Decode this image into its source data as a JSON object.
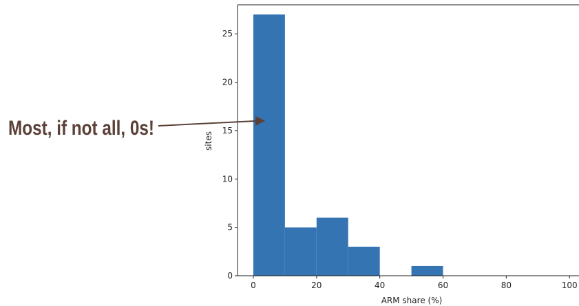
{
  "chart_data": {
    "type": "bar",
    "subtype": "histogram",
    "bins": [
      {
        "from": 0,
        "to": 10,
        "value": 27
      },
      {
        "from": 10,
        "to": 20,
        "value": 5
      },
      {
        "from": 20,
        "to": 30,
        "value": 6
      },
      {
        "from": 30,
        "to": 40,
        "value": 3
      },
      {
        "from": 40,
        "to": 50,
        "value": 0
      },
      {
        "from": 50,
        "to": 60,
        "value": 1
      },
      {
        "from": 60,
        "to": 70,
        "value": 0
      },
      {
        "from": 70,
        "to": 80,
        "value": 0
      },
      {
        "from": 80,
        "to": 90,
        "value": 0
      },
      {
        "from": 90,
        "to": 100,
        "value": 0
      }
    ],
    "xlabel": "ARM share (%)",
    "ylabel": "sites",
    "xlim": [
      -5,
      103
    ],
    "ylim": [
      0,
      28
    ],
    "xticks": [
      0,
      20,
      40,
      60,
      80,
      100
    ],
    "yticks": [
      0,
      5,
      10,
      15,
      20,
      25
    ],
    "grid": false,
    "bar_color": "#3574b3"
  },
  "annotation": {
    "text": "Most, if not all, 0s!",
    "arrow_color": "#5a4037",
    "points_to": {
      "x": 2,
      "y": 16
    }
  }
}
